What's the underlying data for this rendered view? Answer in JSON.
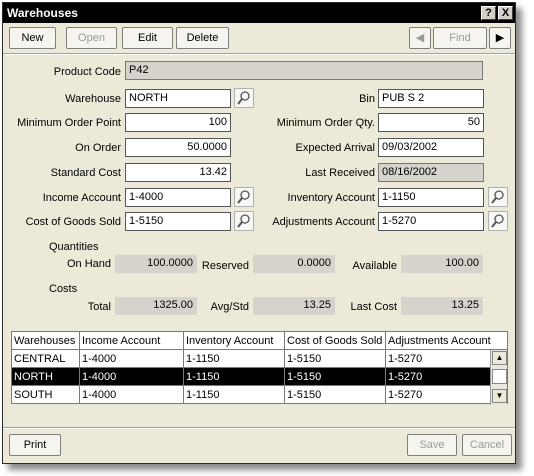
{
  "window": {
    "title": "Warehouses",
    "help_label": "?",
    "close_label": "X"
  },
  "toolbar": {
    "new": "New",
    "open": "Open",
    "edit": "Edit",
    "delete": "Delete",
    "prev": "◀",
    "find": "Find",
    "next": "▶"
  },
  "form": {
    "product_code": {
      "label": "Product Code",
      "value": "P42"
    },
    "warehouse": {
      "label": "Warehouse",
      "value": "NORTH"
    },
    "bin": {
      "label": "Bin",
      "value": "PUB S 2"
    },
    "min_order_point": {
      "label": "Minimum Order Point",
      "value": "100"
    },
    "min_order_qty": {
      "label": "Minimum Order Qty.",
      "value": "50"
    },
    "on_order": {
      "label": "On Order",
      "value": "50.0000"
    },
    "expected_arrival": {
      "label": "Expected Arrival",
      "value": "09/03/2002"
    },
    "standard_cost": {
      "label": "Standard Cost",
      "value": "13.42"
    },
    "last_received": {
      "label": "Last Received",
      "value": "08/16/2002"
    },
    "income_account": {
      "label": "Income Account",
      "value": "1-4000"
    },
    "inventory_account": {
      "label": "Inventory Account",
      "value": "1-1150"
    },
    "cogs": {
      "label": "Cost of Goods Sold",
      "value": "1-5150"
    },
    "adjustments_account": {
      "label": "Adjustments Account",
      "value": "1-5270"
    }
  },
  "quantities": {
    "heading": "Quantities",
    "on_hand_label": "On Hand",
    "on_hand": "100.0000",
    "reserved_label": "Reserved",
    "reserved": "0.0000",
    "available_label": "Available",
    "available": "100.00"
  },
  "costs": {
    "heading": "Costs",
    "total_label": "Total",
    "total": "1325.00",
    "avg_label": "Avg/Std",
    "avg": "13.25",
    "last_label": "Last Cost",
    "last": "13.25"
  },
  "table": {
    "columns": [
      "Warehouses",
      "Income Account",
      "Inventory Account",
      "Cost of Goods Sold",
      "Adjustments Account"
    ],
    "rows": [
      [
        "CENTRAL",
        "1-4000",
        "1-1150",
        "1-5150",
        "1-5270"
      ],
      [
        "NORTH",
        "1-4000",
        "1-1150",
        "1-5150",
        "1-5270"
      ],
      [
        "SOUTH",
        "1-4000",
        "1-1150",
        "1-5150",
        "1-5270"
      ]
    ],
    "selected_row": 1
  },
  "footer": {
    "print": "Print",
    "save": "Save",
    "cancel": "Cancel"
  }
}
